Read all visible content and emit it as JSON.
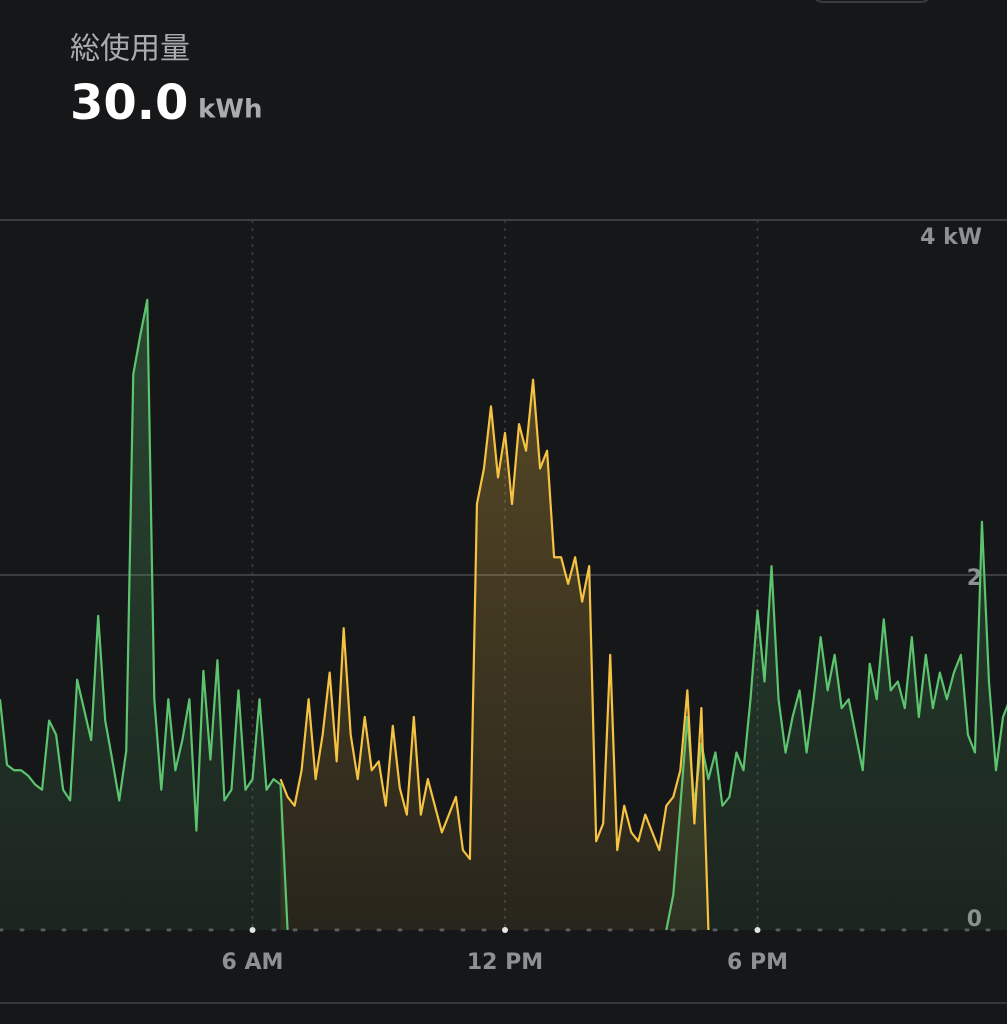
{
  "header": {
    "title": "総使用量",
    "value": "30.0",
    "unit": "kWh"
  },
  "chart_data": {
    "type": "line",
    "x": [
      0,
      10,
      20,
      30,
      40,
      50,
      60,
      70,
      80,
      90,
      100,
      110,
      120,
      130,
      140,
      150,
      160,
      170,
      180,
      190,
      200,
      210,
      220,
      230,
      240,
      250,
      260,
      270,
      280,
      290,
      300,
      310,
      320,
      330,
      340,
      350,
      360,
      370,
      380,
      390,
      400,
      410,
      420,
      430,
      440,
      450,
      460,
      470,
      480,
      490,
      500,
      510,
      520,
      530,
      540,
      550,
      560,
      570,
      580,
      590,
      600,
      610,
      620,
      630,
      640,
      650,
      660,
      670,
      680,
      690,
      700,
      710,
      720,
      730,
      740,
      750,
      760,
      770,
      780,
      790,
      800,
      810,
      820,
      830,
      840,
      850,
      860,
      870,
      880,
      890,
      900,
      910,
      920,
      930,
      940,
      950,
      960,
      970,
      980,
      990,
      1000,
      1010,
      1020,
      1030,
      1040,
      1050,
      1060,
      1070,
      1080,
      1090,
      1100,
      1110,
      1120,
      1130,
      1140,
      1150,
      1160,
      1170,
      1180,
      1190,
      1200,
      1210,
      1220,
      1230,
      1240,
      1250,
      1260,
      1270,
      1280,
      1290,
      1300,
      1310,
      1320,
      1330,
      1340,
      1350,
      1360,
      1370,
      1380,
      1390,
      1400,
      1410,
      1420,
      1430,
      1440
    ],
    "series": [
      {
        "color": "#5cc46e",
        "values": [
          1.3,
          0.93,
          0.9,
          0.9,
          0.87,
          0.82,
          0.79,
          1.18,
          1.1,
          0.79,
          0.73,
          1.41,
          1.24,
          1.07,
          1.77,
          1.18,
          0.96,
          0.73,
          1.01,
          3.13,
          3.35,
          3.55,
          1.3,
          0.79,
          1.3,
          0.9,
          1.07,
          1.3,
          0.56,
          1.46,
          0.96,
          1.52,
          0.73,
          0.79,
          1.35,
          0.79,
          0.85,
          1.3,
          0.79,
          0.85,
          0.82,
          0,
          null,
          null,
          null,
          null,
          null,
          null,
          null,
          null,
          null,
          null,
          null,
          null,
          null,
          null,
          null,
          null,
          null,
          null,
          null,
          null,
          null,
          null,
          null,
          null,
          null,
          null,
          null,
          null,
          null,
          null,
          null,
          null,
          null,
          null,
          null,
          null,
          null,
          null,
          null,
          null,
          null,
          null,
          null,
          null,
          null,
          null,
          null,
          null,
          null,
          null,
          null,
          null,
          null,
          0,
          0.2,
          0.7,
          1.2,
          0.7,
          1.05,
          0.85,
          1.0,
          0.7,
          0.75,
          1.0,
          0.9,
          1.3,
          1.8,
          1.4,
          2.05,
          1.3,
          1.0,
          1.2,
          1.35,
          1.0,
          1.3,
          1.65,
          1.35,
          1.55,
          1.25,
          1.3,
          1.1,
          0.9,
          1.5,
          1.3,
          1.75,
          1.35,
          1.4,
          1.25,
          1.65,
          1.2,
          1.55,
          1.25,
          1.45,
          1.3,
          1.45,
          1.55,
          1.1,
          1.0,
          2.3,
          1.4,
          0.9,
          1.2,
          1.3
        ]
      },
      {
        "color": "#f5c242",
        "values": [
          null,
          null,
          null,
          null,
          null,
          null,
          null,
          null,
          null,
          null,
          null,
          null,
          null,
          null,
          null,
          null,
          null,
          null,
          null,
          null,
          null,
          null,
          null,
          null,
          null,
          null,
          null,
          null,
          null,
          null,
          null,
          null,
          null,
          null,
          null,
          null,
          null,
          null,
          null,
          null,
          0.85,
          0.75,
          0.7,
          0.9,
          1.3,
          0.85,
          1.1,
          1.45,
          0.95,
          1.7,
          1.1,
          0.85,
          1.2,
          0.9,
          0.95,
          0.7,
          1.15,
          0.8,
          0.65,
          1.2,
          0.65,
          0.85,
          0.7,
          0.55,
          0.65,
          0.75,
          0.45,
          0.4,
          2.4,
          2.6,
          2.95,
          2.55,
          2.8,
          2.4,
          2.85,
          2.7,
          3.1,
          2.6,
          2.7,
          2.1,
          2.1,
          1.95,
          2.1,
          1.85,
          2.05,
          0.5,
          0.6,
          1.55,
          0.45,
          0.7,
          0.55,
          0.5,
          0.65,
          0.55,
          0.45,
          0.7,
          0.75,
          0.9,
          1.35,
          0.6,
          1.25,
          0,
          null,
          null,
          null,
          null,
          null,
          null,
          null,
          null,
          null,
          null,
          null,
          null,
          null,
          null,
          null,
          null,
          null,
          null,
          null,
          null,
          null,
          null,
          null,
          null,
          null,
          null,
          null,
          null,
          null,
          null,
          null,
          null,
          null,
          null,
          null,
          null,
          null,
          null,
          null,
          null,
          null,
          null,
          null
        ]
      }
    ],
    "xlim": [
      0,
      1440
    ],
    "xticks": [
      {
        "value": 360,
        "label": "6 AM"
      },
      {
        "value": 720,
        "label": "12 PM"
      },
      {
        "value": 1080,
        "label": "6 PM"
      }
    ],
    "ylim": [
      0,
      4
    ],
    "yticks": [
      0,
      2,
      {
        "value": 4,
        "label": "4 kW"
      }
    ],
    "grid": true
  }
}
